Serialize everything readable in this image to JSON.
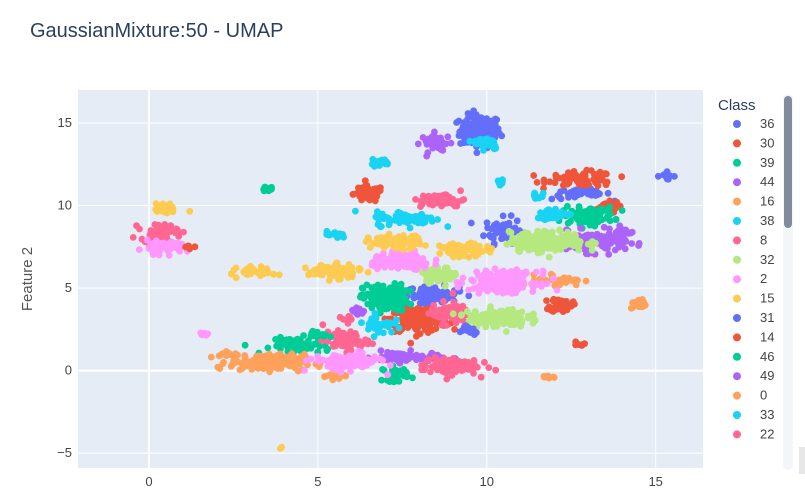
{
  "chart_data": {
    "type": "scatter",
    "title": "GaussianMixture:50 - UMAP",
    "xlabel": "",
    "ylabel": "Feature 2",
    "xlim": [
      -2.1,
      16.4
    ],
    "ylim": [
      -5.9,
      17.0
    ],
    "x_ticks": [
      0,
      5,
      10,
      15
    ],
    "y_ticks": [
      -5,
      0,
      5,
      10,
      15
    ],
    "grid": true,
    "legend_title": "Class",
    "legend_placement": "right",
    "series": [
      {
        "name": "36",
        "color": "#636efa",
        "clusters": [
          [
            9.8,
            14.5,
            0.55,
            0.9,
            150
          ],
          [
            10.5,
            8.5,
            0.5,
            0.7,
            60
          ],
          [
            8.4,
            4.6,
            0.7,
            0.45,
            90
          ],
          [
            15.3,
            11.8,
            0.25,
            0.2,
            12
          ],
          [
            12.8,
            10.7,
            0.8,
            0.3,
            40
          ]
        ]
      },
      {
        "name": "30",
        "color": "#EF553B",
        "clusters": [
          [
            6.5,
            10.7,
            0.4,
            0.45,
            60
          ],
          [
            12.8,
            11.6,
            0.9,
            0.4,
            80
          ],
          [
            8.0,
            3.1,
            0.8,
            0.65,
            200
          ],
          [
            12.2,
            4.0,
            0.3,
            0.4,
            40
          ],
          [
            13.5,
            9.9,
            0.4,
            0.3,
            30
          ],
          [
            12.7,
            1.6,
            0.15,
            0.15,
            6
          ]
        ]
      },
      {
        "name": "39",
        "color": "#00cc96",
        "clusters": [
          [
            7.0,
            4.4,
            0.6,
            0.75,
            150
          ],
          [
            13.0,
            9.4,
            0.7,
            0.45,
            100
          ],
          [
            4.5,
            1.5,
            0.8,
            0.45,
            60
          ],
          [
            7.3,
            -0.2,
            0.35,
            0.4,
            30
          ],
          [
            3.5,
            11.0,
            0.2,
            0.12,
            10
          ]
        ]
      },
      {
        "name": "44",
        "color": "#ab63fa",
        "clusters": [
          [
            8.5,
            13.8,
            0.4,
            0.5,
            40
          ],
          [
            13.0,
            7.8,
            1.0,
            0.55,
            150
          ],
          [
            7.6,
            0.8,
            0.9,
            0.3,
            70
          ],
          [
            14.0,
            8.2,
            0.25,
            0.4,
            20
          ]
        ]
      },
      {
        "name": "16",
        "color": "#FFA15A",
        "clusters": [
          [
            3.5,
            0.5,
            1.0,
            0.45,
            200
          ],
          [
            12.2,
            5.5,
            0.6,
            0.3,
            40
          ],
          [
            14.5,
            4.0,
            0.2,
            0.3,
            20
          ],
          [
            5.5,
            -0.3,
            0.3,
            0.2,
            20
          ],
          [
            11.8,
            -0.4,
            0.2,
            0.1,
            8
          ]
        ]
      },
      {
        "name": "38",
        "color": "#19d3f3",
        "clusters": [
          [
            10.0,
            13.8,
            0.35,
            0.35,
            40
          ],
          [
            7.6,
            9.2,
            0.8,
            0.4,
            80
          ],
          [
            12.0,
            9.5,
            0.5,
            0.3,
            40
          ],
          [
            6.8,
            2.8,
            0.4,
            0.5,
            40
          ],
          [
            6.8,
            12.6,
            0.3,
            0.2,
            20
          ],
          [
            5.5,
            8.2,
            0.3,
            0.2,
            15
          ],
          [
            10.4,
            11.4,
            0.2,
            0.2,
            10
          ]
        ]
      },
      {
        "name": "8",
        "color": "#FF6692",
        "clusters": [
          [
            0.3,
            8.4,
            0.5,
            0.45,
            60
          ],
          [
            8.7,
            10.3,
            0.6,
            0.4,
            60
          ],
          [
            5.8,
            1.8,
            0.6,
            0.5,
            80
          ],
          [
            8.9,
            0.3,
            0.75,
            0.5,
            100
          ],
          [
            8.9,
            3.5,
            0.5,
            0.6,
            70
          ]
        ]
      },
      {
        "name": "32",
        "color": "#B6E880",
        "clusters": [
          [
            11.8,
            7.8,
            1.0,
            0.55,
            200
          ],
          [
            10.3,
            3.2,
            0.8,
            0.5,
            150
          ],
          [
            8.6,
            5.8,
            0.5,
            0.4,
            60
          ]
        ]
      },
      {
        "name": "2",
        "color": "#FF97FF",
        "clusters": [
          [
            0.5,
            7.5,
            0.5,
            0.35,
            80
          ],
          [
            7.5,
            6.6,
            0.8,
            0.45,
            150
          ],
          [
            10.5,
            5.4,
            0.9,
            0.55,
            200
          ],
          [
            5.8,
            0.5,
            0.9,
            0.45,
            120
          ],
          [
            1.6,
            2.2,
            0.15,
            0.1,
            10
          ]
        ]
      },
      {
        "name": "15",
        "color": "#FECB52",
        "clusters": [
          [
            0.5,
            9.8,
            0.3,
            0.3,
            30
          ],
          [
            3.2,
            6.0,
            0.5,
            0.25,
            50
          ],
          [
            5.5,
            6.0,
            0.7,
            0.35,
            100
          ],
          [
            7.3,
            7.8,
            0.7,
            0.35,
            100
          ],
          [
            9.3,
            7.3,
            0.6,
            0.35,
            80
          ],
          [
            3.9,
            -4.7,
            0.06,
            0.06,
            2
          ]
        ]
      },
      {
        "name": "31",
        "color": "#636efa",
        "clusters": [
          [
            9.5,
            2.5,
            0.3,
            0.25,
            20
          ]
        ]
      },
      {
        "name": "14",
        "color": "#EF553B",
        "clusters": [
          [
            1.2,
            7.5,
            0.15,
            0.15,
            6
          ]
        ]
      },
      {
        "name": "46",
        "color": "#00cc96",
        "clusters": [
          [
            5.0,
            2.2,
            0.3,
            0.2,
            15
          ]
        ]
      },
      {
        "name": "49",
        "color": "#ab63fa",
        "clusters": [
          [
            6.2,
            3.6,
            0.2,
            0.2,
            10
          ]
        ]
      },
      {
        "name": "0",
        "color": "#FFA15A",
        "clusters": [
          [
            2.3,
            1.0,
            0.2,
            0.15,
            10
          ]
        ]
      },
      {
        "name": "33",
        "color": "#19d3f3",
        "clusters": [
          [
            11.5,
            10.6,
            0.2,
            0.2,
            8
          ]
        ]
      },
      {
        "name": "22",
        "color": "#FF6692",
        "clusters": [
          [
            5.9,
            3.1,
            0.2,
            0.2,
            10
          ]
        ]
      }
    ]
  }
}
